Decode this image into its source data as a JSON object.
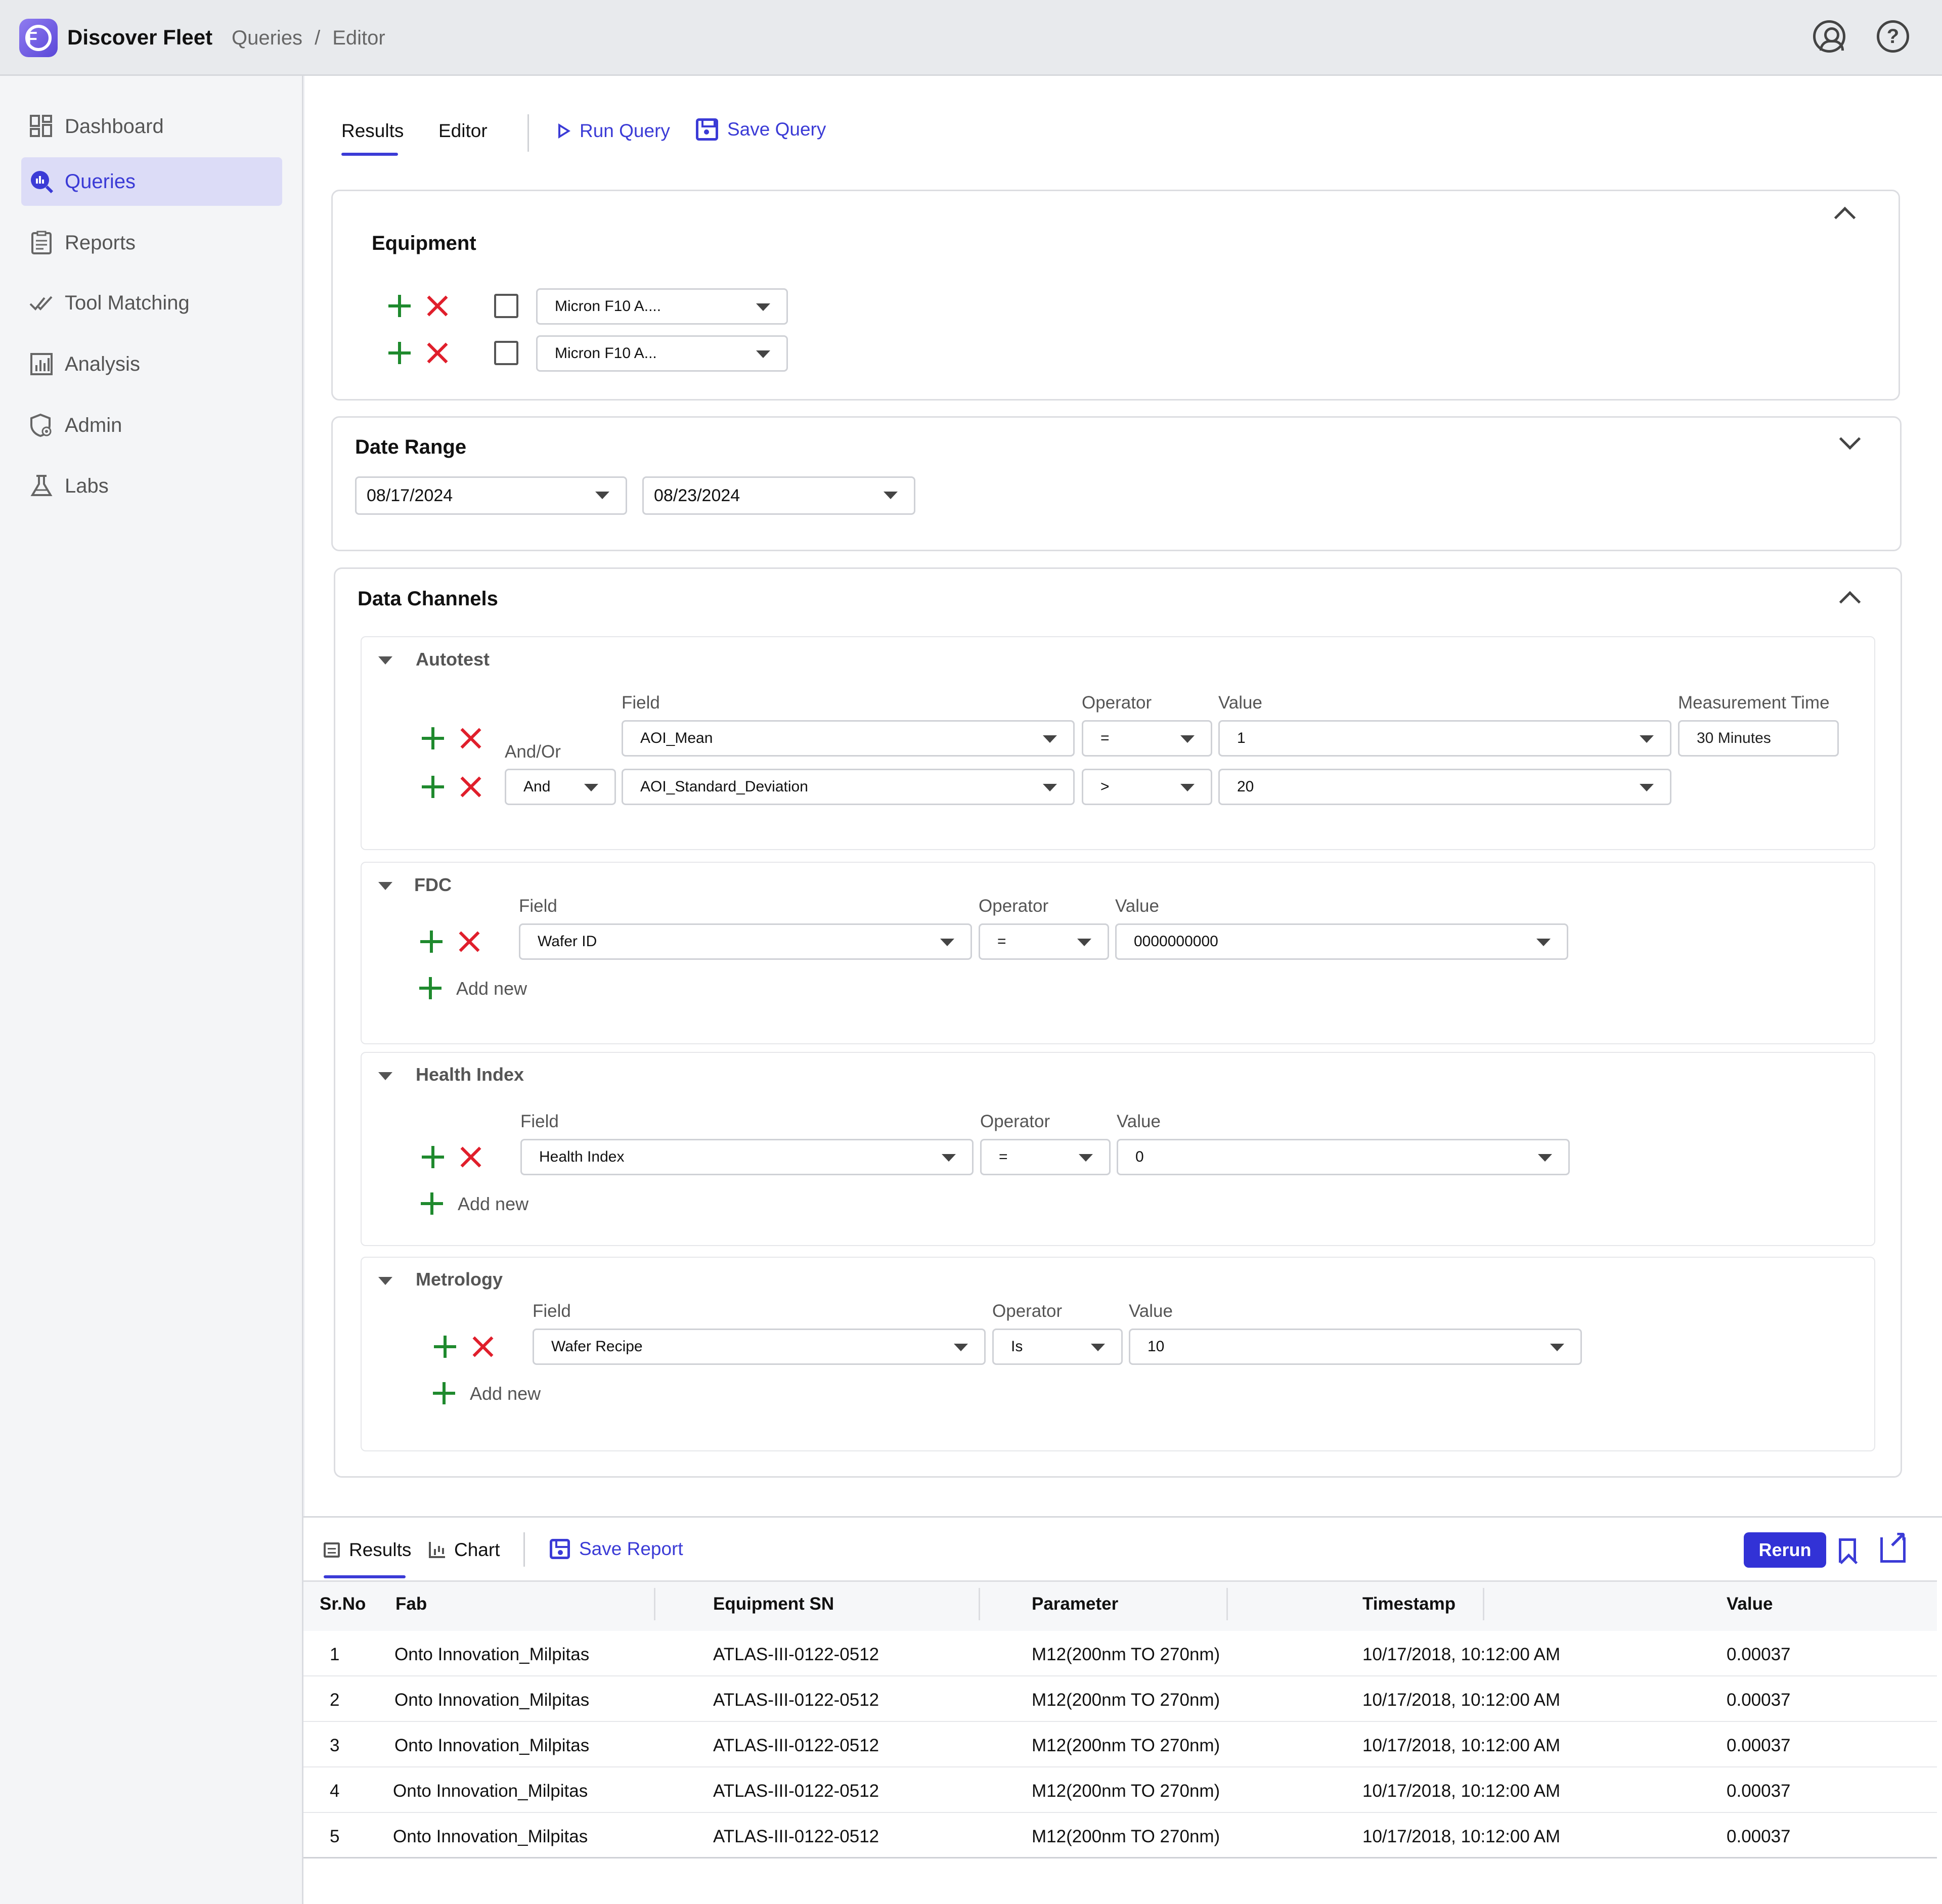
{
  "header": {
    "app_title": "Discover Fleet",
    "logo_letter": "F",
    "breadcrumb": [
      "Queries",
      "/",
      "Editor"
    ],
    "help_glyph": "?"
  },
  "sidebar": {
    "items": [
      {
        "label": "Dashboard",
        "icon": "dashboard-icon"
      },
      {
        "label": "Queries",
        "icon": "queries-icon",
        "active": true
      },
      {
        "label": "Reports",
        "icon": "reports-icon"
      },
      {
        "label": "Tool Matching",
        "icon": "tool-matching-icon"
      },
      {
        "label": "Analysis",
        "icon": "analysis-icon"
      },
      {
        "label": "Admin",
        "icon": "admin-icon"
      },
      {
        "label": "Labs",
        "icon": "labs-icon"
      }
    ],
    "collapse_glyph": "«"
  },
  "toolbar": {
    "tabs": [
      "Results",
      "Editor"
    ],
    "run_query": "Run Query",
    "save_query": "Save Query"
  },
  "equipment": {
    "title": "Equipment",
    "rows": [
      {
        "value": "Micron F10 A...."
      },
      {
        "value": "Micron F10 A..."
      }
    ]
  },
  "date_range": {
    "title": "Date Range",
    "start": "08/17/2024",
    "end": "08/23/2024"
  },
  "data_channels": {
    "title": "Data Channels",
    "autotest": {
      "title": "Autotest",
      "labels": {
        "field": "Field",
        "operator": "Operator",
        "value": "Value",
        "measurement_time": "Measurement Time",
        "and_or": "And/Or"
      },
      "rows": [
        {
          "field": "AOI_Mean",
          "operator": "=",
          "value": "1",
          "measurement_time": "30 Minutes"
        },
        {
          "and_or": "And",
          "field": "AOI_Standard_Deviation",
          "operator": ">",
          "value": "20"
        }
      ]
    },
    "fdc": {
      "title": "FDC",
      "labels": {
        "field": "Field",
        "operator": "Operator",
        "value": "Value"
      },
      "row": {
        "field": "Wafer ID",
        "operator": "=",
        "value": "0000000000"
      },
      "add_new": "Add new"
    },
    "health_index": {
      "title": "Health Index",
      "labels": {
        "field": "Field",
        "operator": "Operator",
        "value": "Value"
      },
      "row": {
        "field": "Health Index",
        "operator": "=",
        "value": "0"
      },
      "add_new": "Add new"
    },
    "metrology": {
      "title": "Metrology",
      "labels": {
        "field": "Field",
        "operator": "Operator",
        "value": "Value"
      },
      "row": {
        "field": "Wafer Recipe",
        "operator": "Is",
        "value": "10"
      },
      "add_new": "Add new"
    }
  },
  "results": {
    "tabs": [
      "Results",
      "Chart"
    ],
    "save_report": "Save Report",
    "rerun": "Rerun",
    "columns": [
      "Sr.No",
      "Fab",
      "Equipment SN",
      "Parameter",
      "Timestamp",
      "Value"
    ],
    "rows": [
      [
        "1",
        "Onto Innovation_Milpitas",
        "ATLAS-III-0122-0512",
        "M12(200nm TO 270nm)",
        "10/17/2018, 10:12:00 AM",
        "0.00037"
      ],
      [
        "2",
        "Onto Innovation_Milpitas",
        "ATLAS-III-0122-0512",
        "M12(200nm TO 270nm)",
        "10/17/2018, 10:12:00 AM",
        "0.00037"
      ],
      [
        "3",
        "Onto Innovation_Milpitas",
        "ATLAS-III-0122-0512",
        "M12(200nm TO 270nm)",
        "10/17/2018, 10:12:00 AM",
        "0.00037"
      ],
      [
        "4",
        "Onto Innovation_Milpitas",
        "ATLAS-III-0122-0512",
        "M12(200nm TO 270nm)",
        "10/17/2018, 10:12:00 AM",
        "0.00037"
      ],
      [
        "5",
        "Onto Innovation_Milpitas",
        "ATLAS-III-0122-0512",
        "M12(200nm TO 270nm)",
        "10/17/2018, 10:12:00 AM",
        "0.00037"
      ]
    ]
  },
  "colors": {
    "accent": "#3b3bd6",
    "add": "#1f8a2e",
    "remove": "#e01e2b"
  }
}
